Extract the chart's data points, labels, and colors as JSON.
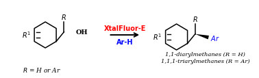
{
  "fig_width": 3.78,
  "fig_height": 1.15,
  "dpi": 100,
  "bg_color": "#ffffff",
  "arrow_color": "#000000",
  "reagent_color": "#ff0000",
  "arh_color": "#0000ff",
  "struct_color": "#000000",
  "ar_color": "#0000ff",
  "reagent_text": "XtalFluor-E",
  "arh_text": "Ar-H",
  "oh_label": "OH",
  "r_eq": "R = H or Ar",
  "product_label1": "1,1-diarylmethanes (R = H)",
  "product_label2": "1,1,1-triarylmethanes (R = Ar)",
  "font_size_reagent": 7.0,
  "font_size_struct": 7.0,
  "font_size_sub": 5.5,
  "font_size_small": 6.5,
  "font_size_product": 6.0,
  "lw": 1.1
}
